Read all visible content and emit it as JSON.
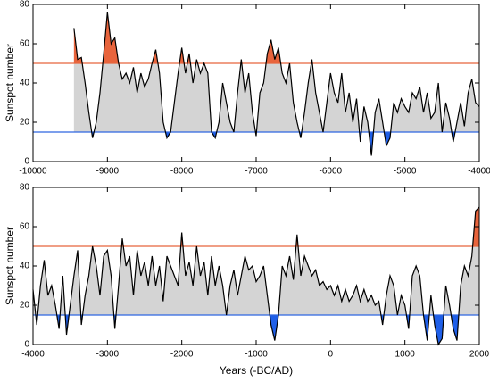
{
  "chart_data": [
    {
      "type": "area_line",
      "ylabel": "Sunspot number",
      "xlim": [
        -10000,
        -4000
      ],
      "ylim": [
        0,
        80
      ],
      "xticks": [
        -10000,
        -9000,
        -8000,
        -7000,
        -6000,
        -5000,
        -4000
      ],
      "yticks": [
        0,
        20,
        40,
        60,
        80
      ],
      "hlines": [
        {
          "value": 50,
          "color": "#e8643c"
        },
        {
          "value": 15,
          "color": "#2f66e0"
        }
      ],
      "fill_colors": {
        "above": "#e8643c",
        "between": "#d4d4d4",
        "below": "#1f5fe8"
      },
      "line_color": "#000000",
      "x": [
        -9450,
        -9400,
        -9350,
        -9300,
        -9250,
        -9200,
        -9150,
        -9100,
        -9050,
        -9000,
        -8950,
        -8900,
        -8850,
        -8800,
        -8750,
        -8700,
        -8650,
        -8600,
        -8550,
        -8500,
        -8450,
        -8400,
        -8350,
        -8300,
        -8250,
        -8200,
        -8150,
        -8100,
        -8050,
        -8000,
        -7950,
        -7900,
        -7850,
        -7800,
        -7750,
        -7700,
        -7650,
        -7600,
        -7550,
        -7500,
        -7450,
        -7400,
        -7350,
        -7300,
        -7250,
        -7200,
        -7150,
        -7100,
        -7050,
        -7000,
        -6950,
        -6900,
        -6850,
        -6800,
        -6750,
        -6700,
        -6650,
        -6600,
        -6550,
        -6500,
        -6450,
        -6400,
        -6350,
        -6300,
        -6250,
        -6200,
        -6150,
        -6100,
        -6050,
        -6000,
        -5950,
        -5900,
        -5850,
        -5800,
        -5750,
        -5700,
        -5650,
        -5600,
        -5550,
        -5500,
        -5450,
        -5400,
        -5350,
        -5300,
        -5250,
        -5200,
        -5150,
        -5100,
        -5050,
        -5000,
        -4950,
        -4900,
        -4850,
        -4800,
        -4750,
        -4700,
        -4650,
        -4600,
        -4550,
        -4500,
        -4450,
        -4400,
        -4350,
        -4300,
        -4250,
        -4200,
        -4150,
        -4100,
        -4050,
        -4000
      ],
      "values": [
        68,
        52,
        53,
        40,
        25,
        12,
        20,
        35,
        55,
        76,
        60,
        63,
        50,
        42,
        45,
        40,
        48,
        35,
        45,
        38,
        42,
        50,
        57,
        45,
        20,
        12,
        15,
        30,
        45,
        58,
        45,
        55,
        40,
        52,
        45,
        50,
        45,
        15,
        12,
        20,
        40,
        30,
        20,
        15,
        35,
        52,
        35,
        45,
        25,
        13,
        35,
        40,
        55,
        62,
        52,
        58,
        45,
        40,
        50,
        30,
        20,
        12,
        25,
        40,
        52,
        35,
        25,
        15,
        30,
        45,
        35,
        30,
        45,
        25,
        35,
        20,
        32,
        10,
        28,
        20,
        3,
        25,
        32,
        20,
        8,
        12,
        30,
        25,
        32,
        28,
        25,
        35,
        32,
        38,
        25,
        35,
        22,
        25,
        40,
        15,
        30,
        22,
        10,
        20,
        30,
        18,
        35,
        42,
        30,
        28
      ]
    },
    {
      "type": "area_line",
      "ylabel": "Sunspot number",
      "xlabel": "Years (-BC/AD)",
      "xlim": [
        -4000,
        2000
      ],
      "ylim": [
        0,
        80
      ],
      "xticks": [
        -4000,
        -3000,
        -2000,
        -1000,
        0,
        1000,
        2000
      ],
      "yticks": [
        0,
        20,
        40,
        60,
        80
      ],
      "hlines": [
        {
          "value": 50,
          "color": "#e8643c"
        },
        {
          "value": 15,
          "color": "#2f66e0"
        }
      ],
      "fill_colors": {
        "above": "#e8643c",
        "between": "#d4d4d4",
        "below": "#1f5fe8"
      },
      "line_color": "#000000",
      "x": [
        -4000,
        -3950,
        -3900,
        -3850,
        -3800,
        -3750,
        -3700,
        -3650,
        -3600,
        -3550,
        -3500,
        -3450,
        -3400,
        -3350,
        -3300,
        -3250,
        -3200,
        -3150,
        -3100,
        -3050,
        -3000,
        -2950,
        -2900,
        -2850,
        -2800,
        -2750,
        -2700,
        -2650,
        -2600,
        -2550,
        -2500,
        -2450,
        -2400,
        -2350,
        -2300,
        -2250,
        -2200,
        -2150,
        -2100,
        -2050,
        -2000,
        -1950,
        -1900,
        -1850,
        -1800,
        -1750,
        -1700,
        -1650,
        -1600,
        -1550,
        -1500,
        -1450,
        -1400,
        -1350,
        -1300,
        -1250,
        -1200,
        -1150,
        -1100,
        -1050,
        -1000,
        -950,
        -900,
        -850,
        -800,
        -750,
        -700,
        -650,
        -600,
        -550,
        -500,
        -450,
        -400,
        -350,
        -300,
        -250,
        -200,
        -150,
        -100,
        -50,
        0,
        50,
        100,
        150,
        200,
        250,
        300,
        350,
        400,
        450,
        500,
        550,
        600,
        650,
        700,
        750,
        800,
        850,
        900,
        950,
        1000,
        1050,
        1100,
        1150,
        1200,
        1250,
        1300,
        1350,
        1400,
        1450,
        1500,
        1550,
        1600,
        1650,
        1700,
        1750,
        1800,
        1850,
        1900,
        1950,
        2000
      ],
      "values": [
        28,
        10,
        30,
        43,
        25,
        30,
        20,
        8,
        35,
        5,
        20,
        35,
        48,
        10,
        25,
        35,
        50,
        40,
        25,
        45,
        48,
        35,
        8,
        30,
        54,
        40,
        45,
        25,
        48,
        35,
        42,
        30,
        45,
        30,
        40,
        22,
        45,
        40,
        35,
        30,
        57,
        35,
        42,
        30,
        50,
        35,
        42,
        25,
        45,
        30,
        40,
        30,
        15,
        30,
        38,
        25,
        35,
        45,
        38,
        40,
        32,
        35,
        40,
        25,
        10,
        2,
        15,
        40,
        35,
        45,
        33,
        56,
        35,
        45,
        40,
        35,
        38,
        30,
        32,
        28,
        30,
        25,
        30,
        22,
        28,
        22,
        25,
        30,
        22,
        28,
        22,
        25,
        20,
        22,
        10,
        25,
        35,
        30,
        15,
        25,
        20,
        8,
        35,
        40,
        35,
        15,
        2,
        25,
        10,
        0,
        3,
        30,
        20,
        8,
        2,
        30,
        40,
        35,
        45,
        68,
        70
      ]
    }
  ]
}
